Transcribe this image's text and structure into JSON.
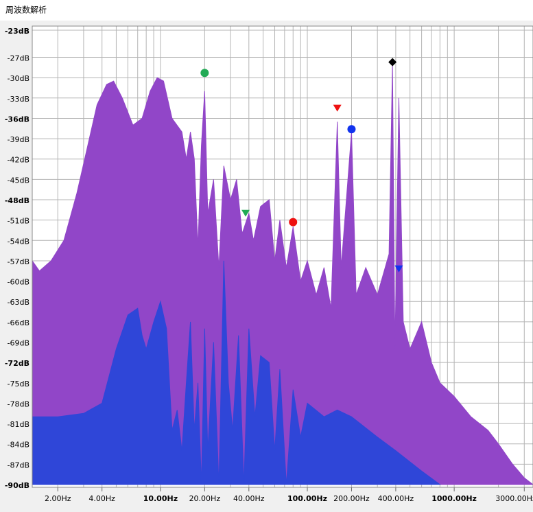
{
  "chart_data": {
    "type": "area",
    "title": "周波数解析",
    "xscale": "log",
    "xlim": [
      1.34,
      3440
    ],
    "ylim": [
      -90,
      -23
    ],
    "xticks": [
      {
        "value": 2,
        "label": "2.00Hz"
      },
      {
        "value": 4,
        "label": "4.00Hz"
      },
      {
        "value": 10,
        "label": "10.00Hz"
      },
      {
        "value": 20,
        "label": "20.00Hz"
      },
      {
        "value": 40,
        "label": "40.00Hz"
      },
      {
        "value": 100,
        "label": "100.00Hz"
      },
      {
        "value": 200,
        "label": "200.00Hz"
      },
      {
        "value": 400,
        "label": "400.00Hz"
      },
      {
        "value": 1000,
        "label": "1000.00Hz"
      },
      {
        "value": 3000,
        "label": "3000.00Hz"
      }
    ],
    "xminor": [
      2,
      3,
      4,
      5,
      6,
      7,
      8,
      9,
      10,
      20,
      30,
      40,
      50,
      60,
      70,
      80,
      90,
      100,
      200,
      300,
      400,
      500,
      600,
      700,
      800,
      900,
      1000,
      2000,
      3000
    ],
    "yticks": [
      {
        "value": -23,
        "label": "-23dB"
      },
      {
        "value": -27,
        "label": "-27dB"
      },
      {
        "value": -30,
        "label": "-30dB"
      },
      {
        "value": -33,
        "label": "-33dB"
      },
      {
        "value": -36,
        "label": "-36dB"
      },
      {
        "value": -39,
        "label": "-39dB"
      },
      {
        "value": -42,
        "label": "-42dB"
      },
      {
        "value": -45,
        "label": "-45dB"
      },
      {
        "value": -48,
        "label": "-48dB"
      },
      {
        "value": -51,
        "label": "-51dB"
      },
      {
        "value": -54,
        "label": "-54dB"
      },
      {
        "value": -57,
        "label": "-57dB"
      },
      {
        "value": -60,
        "label": "-60dB"
      },
      {
        "value": -63,
        "label": "-63dB"
      },
      {
        "value": -66,
        "label": "-66dB"
      },
      {
        "value": -69,
        "label": "-69dB"
      },
      {
        "value": -72,
        "label": "-72dB"
      },
      {
        "value": -75,
        "label": "-75dB"
      },
      {
        "value": -78,
        "label": "-78dB"
      },
      {
        "value": -81,
        "label": "-81dB"
      },
      {
        "value": -84,
        "label": "-84dB"
      },
      {
        "value": -87,
        "label": "-87dB"
      },
      {
        "value": -90,
        "label": "-90dB"
      }
    ],
    "grid": true,
    "series": [
      {
        "color": "#9146c8",
        "x": [
          1.34,
          1.5,
          1.8,
          2.2,
          2.7,
          3.2,
          3.7,
          4.3,
          4.8,
          5.5,
          6.5,
          7.5,
          8.5,
          9.5,
          10.5,
          12,
          14,
          15,
          16,
          17,
          18,
          19,
          20,
          21,
          23,
          25,
          27,
          30,
          33,
          36,
          40,
          43,
          48,
          55,
          60,
          65,
          72,
          80,
          90,
          100,
          115,
          130,
          145,
          160,
          170,
          200,
          215,
          250,
          300,
          360,
          380,
          395,
          420,
          450,
          500,
          600,
          700,
          800,
          1000,
          1300,
          1700,
          2000,
          2500,
          3000,
          3440
        ],
        "values": [
          -57,
          -58.5,
          -57,
          -54,
          -47,
          -40,
          -34,
          -31,
          -30.5,
          -33,
          -37,
          -36,
          -32,
          -30,
          -30.5,
          -36,
          -38,
          -42,
          -38,
          -42,
          -55,
          -40,
          -32,
          -50,
          -45,
          -58,
          -43,
          -48,
          -45,
          -53,
          -50,
          -54,
          -49,
          -48,
          -57,
          -51,
          -58,
          -52,
          -60,
          -57,
          -62,
          -58,
          -64,
          -36.5,
          -58,
          -38,
          -62,
          -58,
          -62,
          -56,
          -28,
          -70,
          -33,
          -66,
          -70,
          -66,
          -72,
          -75,
          -77,
          -80,
          -82,
          -84,
          -87,
          -89,
          -90
        ]
      },
      {
        "color": "#2f46d8",
        "x": [
          1.34,
          2,
          3,
          4,
          5,
          6,
          7,
          7.5,
          8,
          9,
          10,
          11,
          12,
          13,
          14,
          15,
          16,
          17,
          18,
          19,
          20,
          21,
          23,
          25,
          27,
          29,
          31,
          34,
          37,
          40,
          44,
          48,
          55,
          60,
          65,
          72,
          80,
          90,
          100,
          130,
          160,
          200,
          300,
          400,
          600,
          800
        ],
        "values": [
          -80,
          -80,
          -79.5,
          -78,
          -70,
          -65,
          -64,
          -68,
          -70,
          -66,
          -63,
          -67,
          -82,
          -79,
          -85,
          -75,
          -66,
          -82,
          -75,
          -90,
          -67,
          -85,
          -69,
          -90,
          -57,
          -75,
          -82,
          -68,
          -90,
          -67,
          -80,
          -71,
          -72,
          -85,
          -73,
          -90,
          -76,
          -83,
          -78,
          -80,
          -79,
          -80,
          -83,
          -85,
          -88,
          -90
        ]
      }
    ],
    "markers": [
      {
        "x": 20,
        "y": -29.3,
        "color": "#22aa55",
        "shape": "circle"
      },
      {
        "x": 38,
        "y": -50,
        "color": "#22aa55",
        "shape": "triangle"
      },
      {
        "x": 80,
        "y": -51.3,
        "color": "#ee1111",
        "shape": "circle"
      },
      {
        "x": 160,
        "y": -34.5,
        "color": "#ee1111",
        "shape": "triangle"
      },
      {
        "x": 200,
        "y": -37.6,
        "color": "#1133ee",
        "shape": "circle"
      },
      {
        "x": 380,
        "y": -27.7,
        "color": "#000000",
        "shape": "diamond"
      },
      {
        "x": 420,
        "y": -58.2,
        "color": "#1133ee",
        "shape": "triangle"
      }
    ]
  }
}
